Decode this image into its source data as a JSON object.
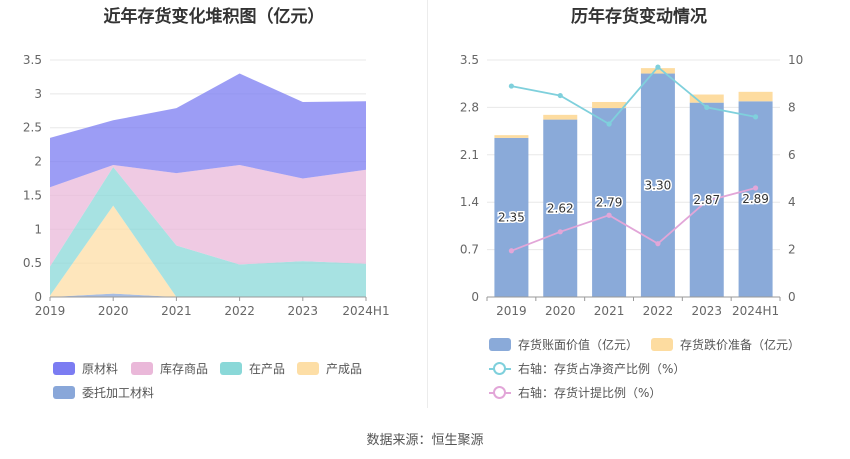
{
  "left_title": "近年存货变化堆积图（亿元）",
  "right_title": "历年存货变动情况",
  "footer": "数据来源：恒生聚源",
  "colors": {
    "raw": "#7b7cf2",
    "wip_goods": "#eab8d9",
    "in_process": "#8ad8d8",
    "finished": "#fddea6",
    "consigned": "#89a7d9",
    "bar_value": "#8aaad9",
    "bar_reserve": "#fddca0",
    "line_ratio": "#7fd0dc",
    "line_provision": "#e2a6d8"
  },
  "chart_data": [
    {
      "type": "area",
      "title": "近年存货变化堆积图（亿元）",
      "categories": [
        "2019",
        "2020",
        "2021",
        "2022",
        "2023",
        "2024H1"
      ],
      "y_ticks": [
        "0",
        "0.5",
        "1",
        "1.5",
        "2",
        "2.5",
        "3",
        "3.5"
      ],
      "ylim": [
        0,
        3.5
      ],
      "stacked": true,
      "series": [
        {
          "name": "委托加工材料",
          "key": "consigned",
          "values": [
            0.0,
            0.05,
            0.0,
            0.0,
            0.0,
            0.0
          ]
        },
        {
          "name": "产成品",
          "key": "finished",
          "values": [
            0.02,
            1.3,
            0.0,
            0.0,
            0.0,
            0.0
          ]
        },
        {
          "name": "在产品",
          "key": "in_process",
          "values": [
            0.43,
            0.57,
            0.76,
            0.48,
            0.53,
            0.49
          ]
        },
        {
          "name": "库存商品",
          "key": "wip_goods",
          "values": [
            1.17,
            0.03,
            1.07,
            1.47,
            1.22,
            1.39
          ]
        },
        {
          "name": "原材料",
          "key": "raw",
          "values": [
            0.73,
            0.66,
            0.96,
            1.35,
            1.13,
            1.01
          ]
        }
      ],
      "legend": [
        {
          "label": "原材料",
          "key": "raw"
        },
        {
          "label": "库存商品",
          "key": "wip_goods"
        },
        {
          "label": "在产品",
          "key": "in_process"
        },
        {
          "label": "产成品",
          "key": "finished"
        },
        {
          "label": "委托加工材料",
          "key": "consigned"
        }
      ]
    },
    {
      "type": "bar",
      "title": "历年存货变动情况",
      "categories": [
        "2019",
        "2020",
        "2021",
        "2022",
        "2023",
        "2024H1"
      ],
      "y_left_ticks": [
        "0",
        "0.7",
        "1.4",
        "2.1",
        "2.8",
        "3.5"
      ],
      "y_right_ticks": [
        "0",
        "2",
        "4",
        "6",
        "8",
        "10"
      ],
      "ylim_left": [
        0,
        3.5
      ],
      "ylim_right": [
        0,
        10
      ],
      "series": [
        {
          "name": "存货账面价值（亿元）",
          "key": "bar_value",
          "values": [
            2.35,
            2.62,
            2.79,
            3.3,
            2.87,
            2.89
          ],
          "labels": [
            "2.35",
            "2.62",
            "2.79",
            "3.30",
            "2.87",
            "2.89"
          ]
        },
        {
          "name": "存货跌价准备（亿元）",
          "key": "bar_reserve",
          "values": [
            0.04,
            0.07,
            0.09,
            0.08,
            0.12,
            0.14
          ]
        },
        {
          "name": "右轴：存货占净资产比例（%）",
          "key": "line_ratio",
          "axis": "right",
          "values": [
            8.9,
            8.5,
            7.3,
            9.7,
            8.0,
            7.6
          ]
        },
        {
          "name": "右轴：存货计提比例（%）",
          "key": "line_provision",
          "axis": "right",
          "values": [
            1.95,
            2.75,
            3.45,
            2.25,
            4.05,
            4.6
          ]
        }
      ],
      "legend": [
        {
          "label": "存货账面价值（亿元）",
          "key": "bar_value",
          "kind": "box"
        },
        {
          "label": "存货跌价准备（亿元）",
          "key": "bar_reserve",
          "kind": "box"
        },
        {
          "label": "右轴：存货占净资产比例（%）",
          "key": "line_ratio",
          "kind": "line"
        },
        {
          "label": "右轴：存货计提比例（%）",
          "key": "line_provision",
          "kind": "line"
        }
      ]
    }
  ]
}
